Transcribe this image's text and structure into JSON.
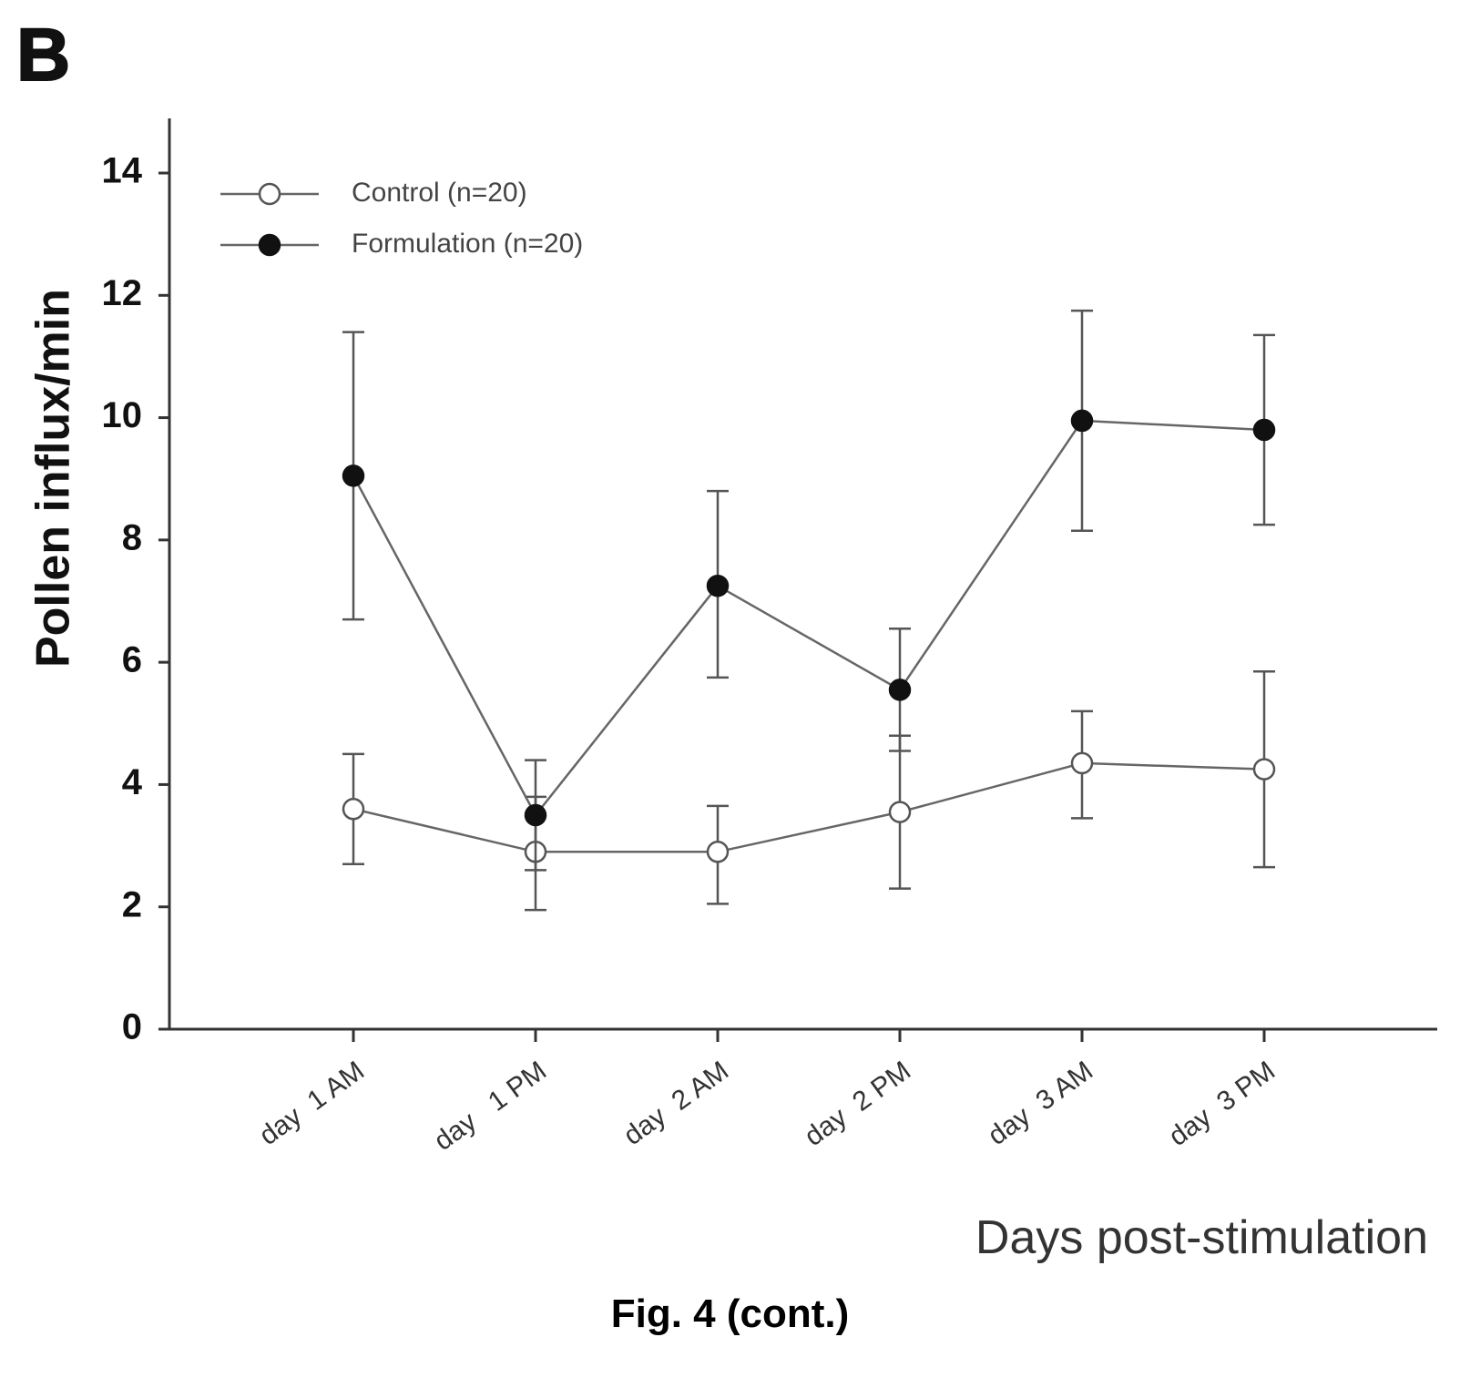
{
  "panel_label": "B",
  "caption": "Fig. 4 (cont.)",
  "colors": {
    "axis": "#333333",
    "line": "#666666",
    "marker_filled": "#111111",
    "marker_open": "#ffffff"
  },
  "chart_data": {
    "type": "line",
    "title": "",
    "xlabel": "Days post-stimulation",
    "ylabel": "Pollen influx/min",
    "ylim": [
      0,
      14
    ],
    "yticks": [
      0,
      2,
      4,
      6,
      8,
      10,
      12,
      14
    ],
    "categories": [
      "day  1 AM",
      "day   1 PM",
      "day  2 AM",
      "day  2 PM",
      "day  3 AM",
      "day  3 PM"
    ],
    "legend_position": "top-left",
    "series": [
      {
        "name": "Control (n=20)",
        "marker": "open-circle",
        "values": [
          3.6,
          2.9,
          2.9,
          3.55,
          4.35,
          4.25
        ],
        "error_low": [
          2.7,
          1.95,
          2.05,
          2.3,
          3.45,
          2.65
        ],
        "error_high": [
          4.5,
          3.8,
          3.65,
          4.8,
          5.2,
          5.85
        ]
      },
      {
        "name": "Formulation (n=20)",
        "marker": "filled-circle",
        "values": [
          9.05,
          3.5,
          7.25,
          5.55,
          9.95,
          9.8
        ],
        "error_low": [
          6.7,
          2.6,
          5.75,
          4.55,
          8.15,
          8.25
        ],
        "error_high": [
          11.4,
          4.4,
          8.8,
          6.55,
          11.75,
          11.35
        ]
      }
    ]
  }
}
